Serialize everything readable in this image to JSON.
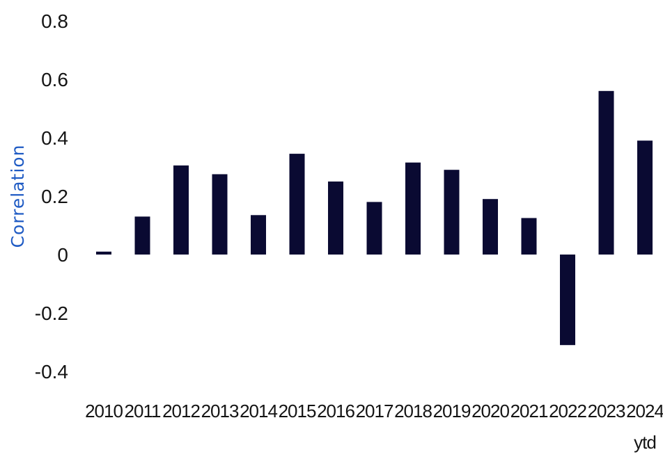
{
  "chart_data": {
    "type": "bar",
    "title": "",
    "xlabel": "",
    "ylabel": "Correlation",
    "categories": [
      "2010",
      "2011",
      "2012",
      "2013",
      "2014",
      "2015",
      "2016",
      "2017",
      "2018",
      "2019",
      "2020",
      "2021",
      "2022",
      "2023",
      "2024"
    ],
    "category_sublabels": [
      "",
      "",
      "",
      "",
      "",
      "",
      "",
      "",
      "",
      "",
      "",
      "",
      "",
      "",
      "ytd"
    ],
    "values": [
      0.01,
      0.13,
      0.305,
      0.275,
      0.135,
      0.345,
      0.25,
      0.18,
      0.315,
      0.29,
      0.19,
      0.125,
      -0.31,
      0.56,
      0.39
    ],
    "ylim": [
      -0.4,
      0.8
    ],
    "yticks": [
      0.8,
      0.6,
      0.4,
      0.2,
      0,
      -0.2,
      -0.4
    ],
    "ytick_labels": [
      "0.8",
      "0.6",
      "0.4",
      "0.2",
      "0",
      "-0.2",
      "-0.4"
    ],
    "grid": false,
    "legend": "none",
    "colors": {
      "bar": "#0a0a32",
      "ylabel": "#1f5bc4",
      "text": "#141414"
    }
  }
}
